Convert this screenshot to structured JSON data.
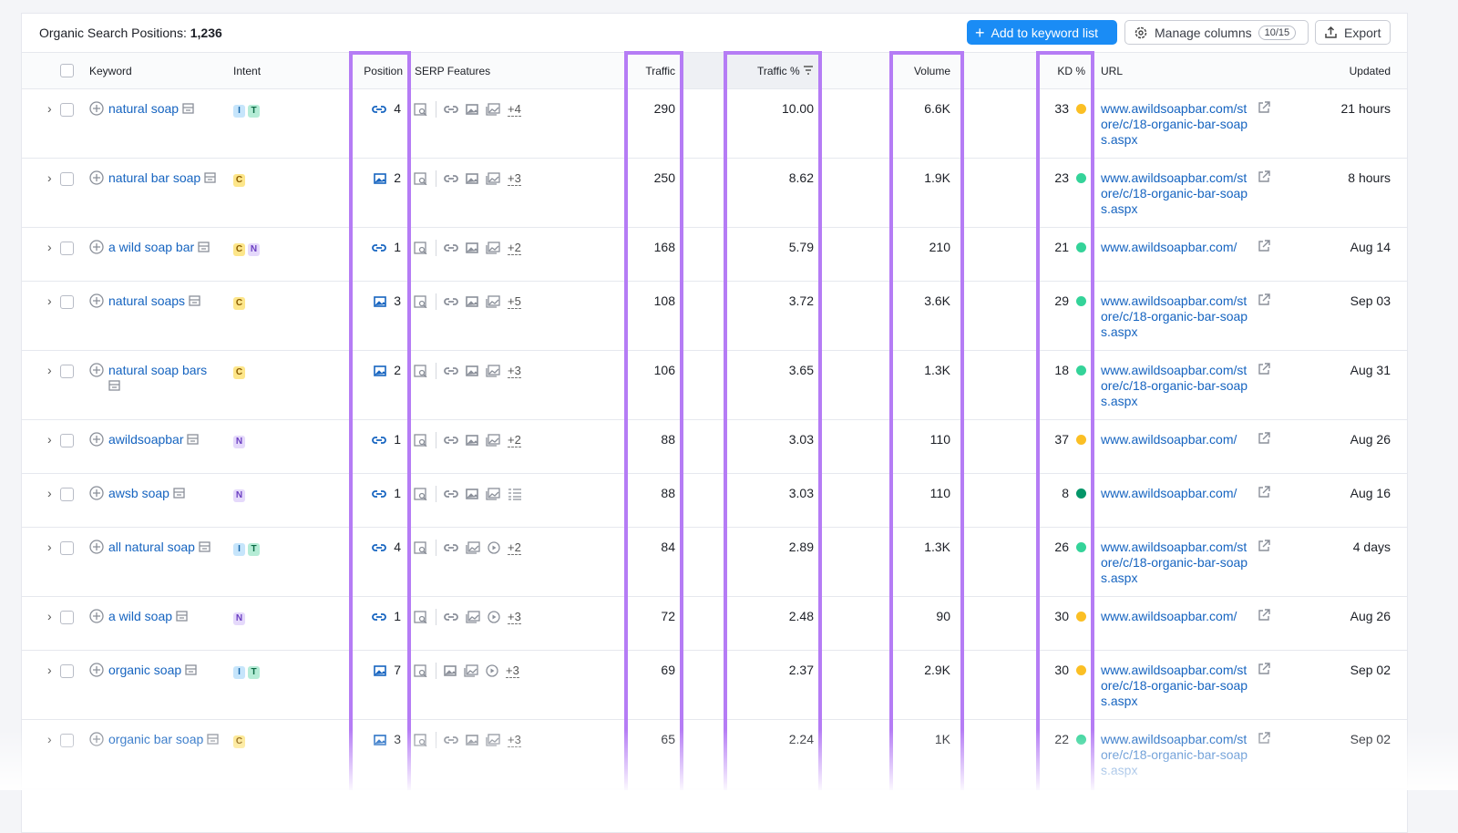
{
  "header": {
    "title": "Organic Search Positions:",
    "count": "1,236",
    "add_button": "Add to keyword list",
    "manage_button": "Manage columns",
    "manage_badge": "10/15",
    "export_button": "Export"
  },
  "table": {
    "columns": [
      "Keyword",
      "Intent",
      "Position",
      "SERP Features",
      "Traffic",
      "Traffic %",
      "Volume",
      "KD %",
      "URL",
      "Updated"
    ],
    "rows": [
      {
        "keyword": "natural soap",
        "intents": [
          "I",
          "T"
        ],
        "position_feature": "link",
        "position": "4",
        "serp_more": "+4",
        "traffic": "290",
        "traffic_pct": "10.00",
        "volume": "6.6K",
        "kd": "33",
        "kd_color": "#fbbf24",
        "url": "www.awildsoapbar.com/store/c/18-organic-bar-soaps.aspx",
        "updated": "21 hours"
      },
      {
        "keyword": "natural bar soap",
        "intents": [
          "C"
        ],
        "position_feature": "image",
        "position": "2",
        "serp_more": "+3",
        "traffic": "250",
        "traffic_pct": "8.62",
        "volume": "1.9K",
        "kd": "23",
        "kd_color": "#34d399",
        "url": "www.awildsoapbar.com/store/c/18-organic-bar-soaps.aspx",
        "updated": "8 hours"
      },
      {
        "keyword": "a wild soap bar",
        "intents": [
          "C",
          "N"
        ],
        "position_feature": "link",
        "position": "1",
        "serp_more": "+2",
        "traffic": "168",
        "traffic_pct": "5.79",
        "volume": "210",
        "kd": "21",
        "kd_color": "#34d399",
        "url": "www.awildsoapbar.com/",
        "updated": "Aug 14"
      },
      {
        "keyword": "natural soaps",
        "intents": [
          "C"
        ],
        "position_feature": "image",
        "position": "3",
        "serp_more": "+5",
        "traffic": "108",
        "traffic_pct": "3.72",
        "volume": "3.6K",
        "kd": "29",
        "kd_color": "#34d399",
        "url": "www.awildsoapbar.com/store/c/18-organic-bar-soaps.aspx",
        "updated": "Sep 03"
      },
      {
        "keyword": "natural soap bars",
        "intents": [
          "C"
        ],
        "position_feature": "image",
        "position": "2",
        "serp_more": "+3",
        "traffic": "106",
        "traffic_pct": "3.65",
        "volume": "1.3K",
        "kd": "18",
        "kd_color": "#34d399",
        "url": "www.awildsoapbar.com/store/c/18-organic-bar-soaps.aspx",
        "updated": "Aug 31"
      },
      {
        "keyword": "awildsoapbar",
        "intents": [
          "N"
        ],
        "position_feature": "link",
        "position": "1",
        "serp_more": "+2",
        "traffic": "88",
        "traffic_pct": "3.03",
        "volume": "110",
        "kd": "37",
        "kd_color": "#fbbf24",
        "url": "www.awildsoapbar.com/",
        "updated": "Aug 26"
      },
      {
        "keyword": "awsb soap",
        "intents": [
          "N"
        ],
        "position_feature": "link",
        "position": "1",
        "traffic": "88",
        "traffic_pct": "3.03",
        "volume": "110",
        "kd": "8",
        "kd_color": "#059669",
        "url": "www.awildsoapbar.com/",
        "updated": "Aug 16"
      },
      {
        "keyword": "all natural soap",
        "intents": [
          "I",
          "T"
        ],
        "position_feature": "link",
        "position": "4",
        "serp_more": "+2",
        "traffic": "84",
        "traffic_pct": "2.89",
        "volume": "1.3K",
        "kd": "26",
        "kd_color": "#34d399",
        "url": "www.awildsoapbar.com/store/c/18-organic-bar-soaps.aspx",
        "updated": "4 days"
      },
      {
        "keyword": "a wild soap",
        "intents": [
          "N"
        ],
        "position_feature": "link",
        "position": "1",
        "serp_more": "+3",
        "traffic": "72",
        "traffic_pct": "2.48",
        "volume": "90",
        "kd": "30",
        "kd_color": "#fbbf24",
        "url": "www.awildsoapbar.com/",
        "updated": "Aug 26"
      },
      {
        "keyword": "organic soap",
        "intents": [
          "I",
          "T"
        ],
        "position_feature": "image",
        "position": "7",
        "serp_more": "+3",
        "traffic": "69",
        "traffic_pct": "2.37",
        "volume": "2.9K",
        "kd": "30",
        "kd_color": "#fbbf24",
        "url": "www.awildsoapbar.com/store/c/18-organic-bar-soaps.aspx",
        "updated": "Sep 02"
      },
      {
        "keyword": "organic bar soap",
        "intents": [
          "C"
        ],
        "position_feature": "image",
        "position": "3",
        "serp_more": "+3",
        "traffic": "65",
        "traffic_pct": "2.24",
        "volume": "1K",
        "kd": "22",
        "kd_color": "#34d399",
        "url": "www.awildsoapbar.com/store/c/18-organic-bar-soaps.aspx",
        "updated": "Sep 02"
      }
    ]
  }
}
